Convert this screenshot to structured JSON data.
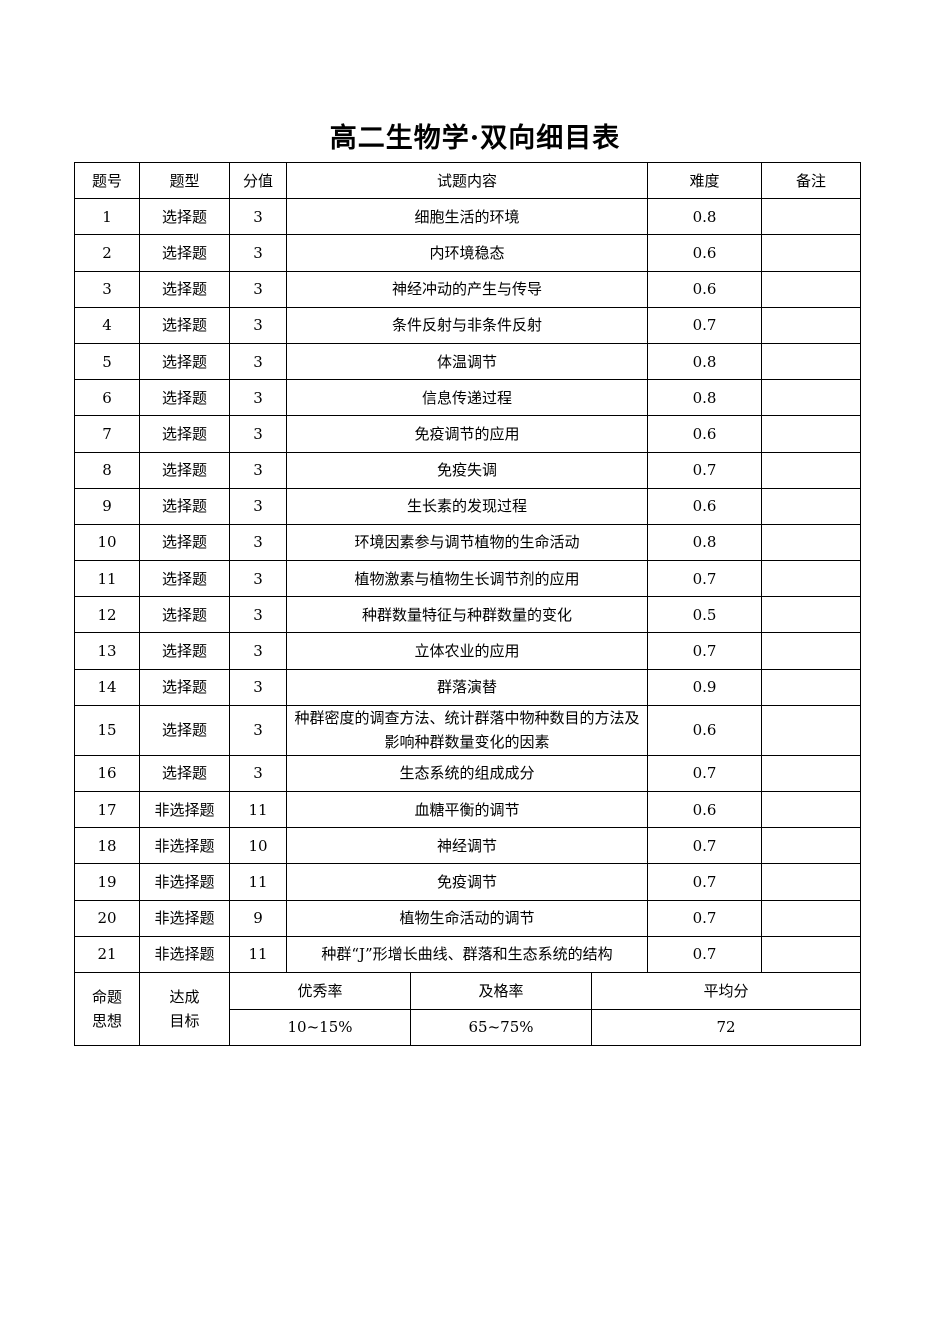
{
  "title": "高二生物学·双向细目表",
  "headers": [
    "题号",
    "题型",
    "分值",
    "试题内容",
    "难度",
    "备注"
  ],
  "rows": [
    [
      "1",
      "选择题",
      "3",
      "细胞生活的环境",
      "0.8",
      ""
    ],
    [
      "2",
      "选择题",
      "3",
      "内环境稳态",
      "0.6",
      ""
    ],
    [
      "3",
      "选择题",
      "3",
      "神经冲动的产生与传导",
      "0.6",
      ""
    ],
    [
      "4",
      "选择题",
      "3",
      "条件反射与非条件反射",
      "0.7",
      ""
    ],
    [
      "5",
      "选择题",
      "3",
      "体温调节",
      "0.8",
      ""
    ],
    [
      "6",
      "选择题",
      "3",
      "信息传递过程",
      "0.8",
      ""
    ],
    [
      "7",
      "选择题",
      "3",
      "免疫调节的应用",
      "0.6",
      ""
    ],
    [
      "8",
      "选择题",
      "3",
      "免疫失调",
      "0.7",
      ""
    ],
    [
      "9",
      "选择题",
      "3",
      "生长素的发现过程",
      "0.6",
      ""
    ],
    [
      "10",
      "选择题",
      "3",
      "环境因素参与调节植物的生命活动",
      "0.8",
      ""
    ],
    [
      "11",
      "选择题",
      "3",
      "植物激素与植物生长调节剂的应用",
      "0.7",
      ""
    ],
    [
      "12",
      "选择题",
      "3",
      "种群数量特征与种群数量的变化",
      "0.5",
      ""
    ],
    [
      "13",
      "选择题",
      "3",
      "立体农业的应用",
      "0.7",
      ""
    ],
    [
      "14",
      "选择题",
      "3",
      "群落演替",
      "0.9",
      ""
    ],
    [
      "15",
      "选择题",
      "3",
      "种群密度的调查方法、统计群落中物种数目的方法及影响种群数量变化的因素",
      "0.6",
      ""
    ],
    [
      "16",
      "选择题",
      "3",
      "生态系统的组成成分",
      "0.7",
      ""
    ],
    [
      "17",
      "非选择题",
      "11",
      "血糖平衡的调节",
      "0.6",
      ""
    ],
    [
      "18",
      "非选择题",
      "10",
      "神经调节",
      "0.7",
      ""
    ],
    [
      "19",
      "非选择题",
      "11",
      "免疫调节",
      "0.7",
      ""
    ],
    [
      "20",
      "非选择题",
      "9",
      "植物生命活动的调节",
      "0.7",
      ""
    ],
    [
      "21",
      "非选择题",
      "11",
      "种群“J”形增长曲线、群落和生态系统的结构",
      "0.7",
      ""
    ]
  ],
  "footer": {
    "label1": "命题思想",
    "label2": "达成目标",
    "col_headers": [
      "优秀率",
      "及格率",
      "平均分"
    ],
    "values": [
      "10~15%",
      "65~75%",
      "72"
    ]
  }
}
